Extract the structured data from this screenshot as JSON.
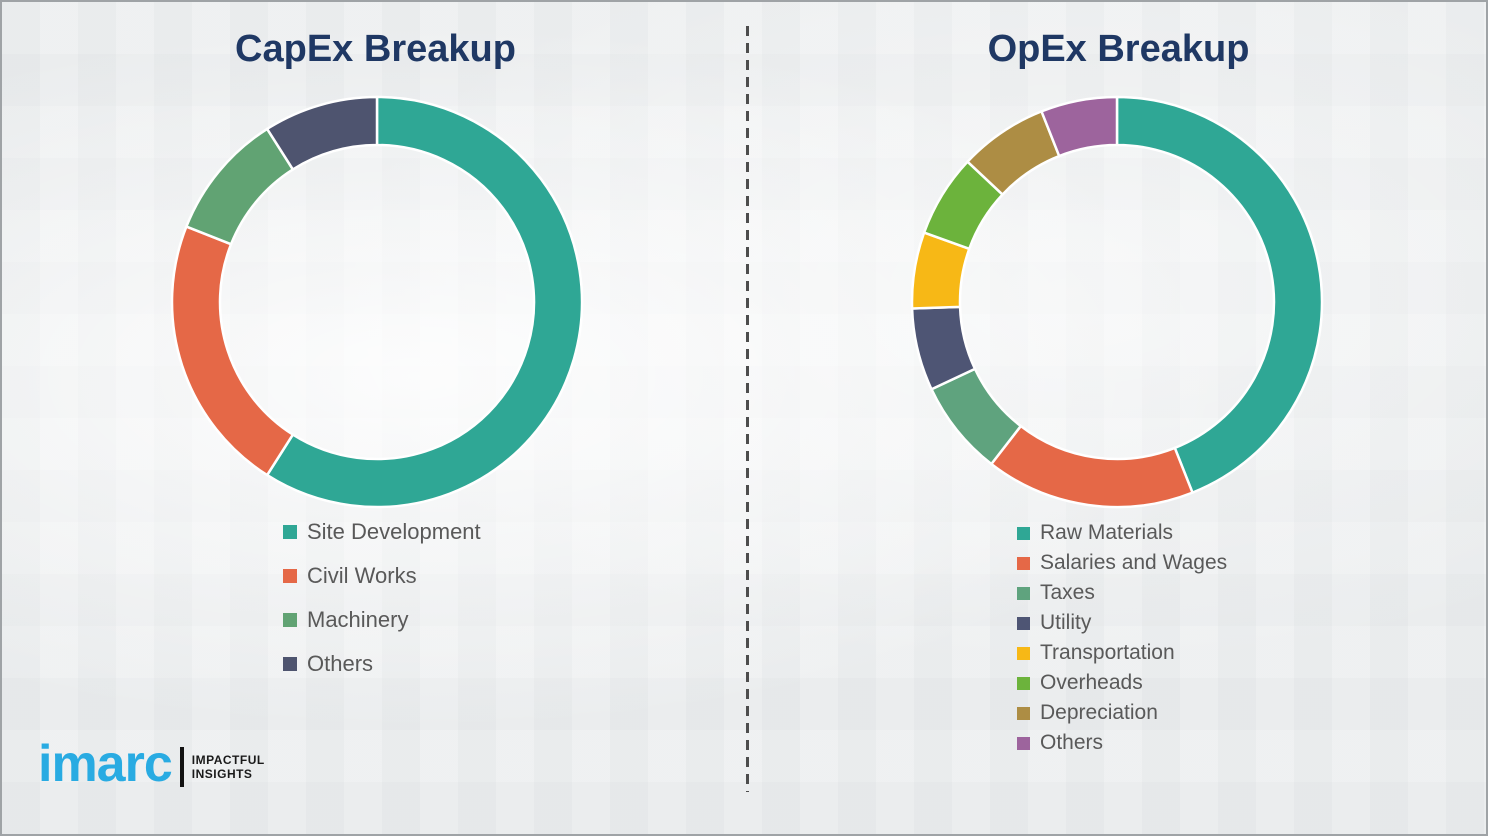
{
  "page": {
    "background_color": "#edeff0",
    "border_color": "#9fa3a6",
    "divider_color": "#4d4d4d",
    "title_color": "#1f3864",
    "legend_text_color": "#595959"
  },
  "chart_data": [
    {
      "type": "pie",
      "subtype": "donut",
      "title": "CapEx Breakup",
      "legend_position": "below-left",
      "start_angle_deg_from_top": 0,
      "direction": "clockwise",
      "categories": [
        "Site Development",
        "Civil Works",
        "Machinery",
        "Others"
      ],
      "values": [
        59,
        22,
        10,
        9
      ],
      "colors": [
        "#2fa795",
        "#e56847",
        "#61a373",
        "#4e546f"
      ]
    },
    {
      "type": "pie",
      "subtype": "donut",
      "title": "OpEx Breakup",
      "legend_position": "below-left",
      "start_angle_deg_from_top": 0,
      "direction": "clockwise",
      "categories": [
        "Raw Materials",
        "Salaries and Wages",
        "Taxes",
        "Utility",
        "Transportation",
        "Overheads",
        "Depreciation",
        "Others"
      ],
      "values": [
        44,
        16.5,
        7.5,
        6.5,
        6,
        6.5,
        7,
        6
      ],
      "colors": [
        "#2fa795",
        "#e56847",
        "#5fa37e",
        "#4e5574",
        "#f7b816",
        "#6cb33c",
        "#ad8d44",
        "#9d649d"
      ]
    }
  ],
  "logo": {
    "brand": "imarc",
    "brand_color": "#29abe2",
    "tagline_line1": "IMPACTFUL",
    "tagline_line2": "INSIGHTS"
  }
}
